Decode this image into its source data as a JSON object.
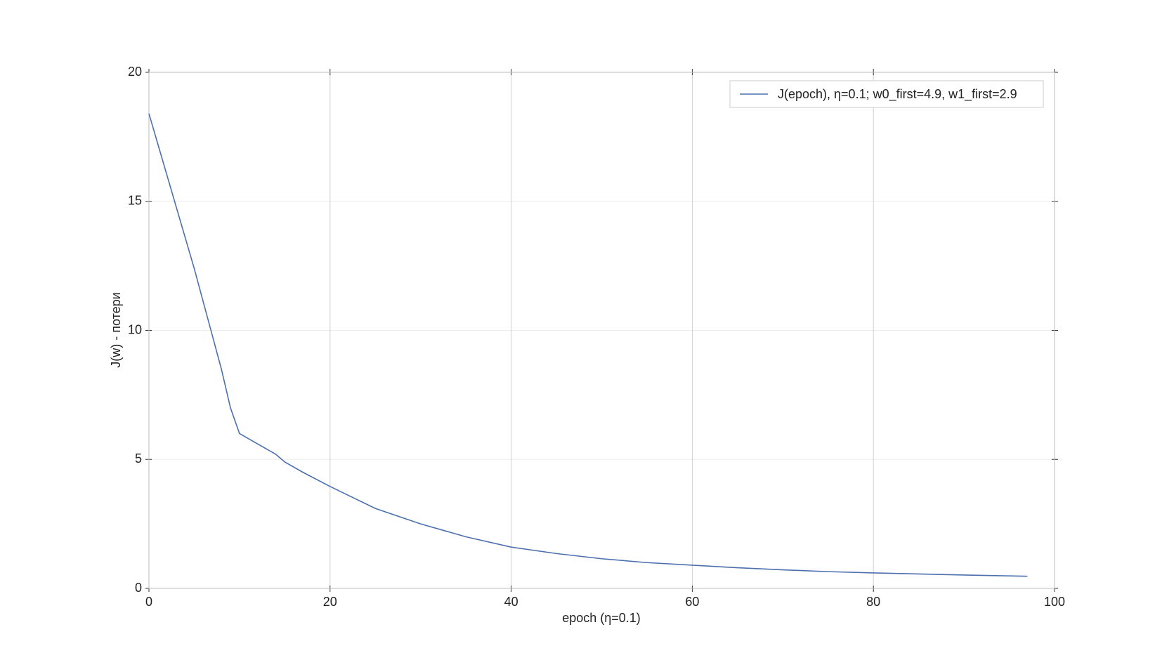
{
  "chart_data": {
    "type": "line",
    "xlabel": "epoch (η=0.1)",
    "ylabel": "J(w) - потери",
    "x": [
      0,
      1,
      2,
      3,
      4,
      5,
      6,
      7,
      8,
      9,
      10,
      12,
      14,
      15,
      17,
      20,
      25,
      30,
      35,
      40,
      45,
      50,
      55,
      60,
      65,
      70,
      75,
      80,
      85,
      90,
      97
    ],
    "series": [
      {
        "name": "J(epoch), η=0.1; w0_first=4.9, w1_first=2.9",
        "color": "#4c6fae",
        "values": [
          18.4,
          17.2,
          16.0,
          14.8,
          13.6,
          12.4,
          11.1,
          9.8,
          8.5,
          7.0,
          6.0,
          5.6,
          5.2,
          4.9,
          4.5,
          3.95,
          3.1,
          2.5,
          2.0,
          1.6,
          1.35,
          1.15,
          1.0,
          0.9,
          0.8,
          0.72,
          0.65,
          0.6,
          0.56,
          0.52,
          0.47
        ]
      }
    ],
    "xlim": [
      0,
      100
    ],
    "xticks": [
      0,
      20,
      40,
      60,
      80,
      100
    ],
    "ylim": [
      0,
      20
    ],
    "yticks": [
      0,
      5,
      10,
      15,
      20
    ],
    "grid": true,
    "legend": "upper right"
  }
}
